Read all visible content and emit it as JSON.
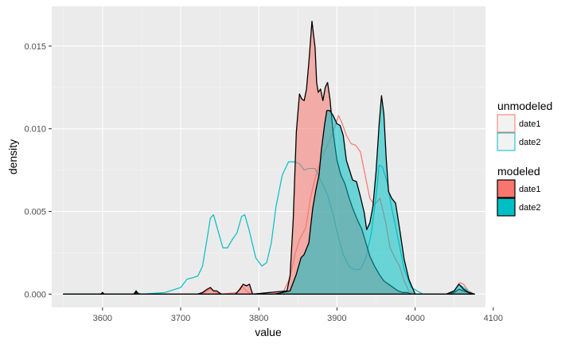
{
  "chart_data": {
    "type": "area",
    "xlabel": "value",
    "ylabel": "density",
    "xlim": [
      3535,
      4090
    ],
    "ylim": [
      -0.0008,
      0.0174
    ],
    "x_ticks": [
      3600,
      3700,
      3800,
      3900,
      4000,
      4100
    ],
    "x_tick_labels": [
      "3600",
      "3700",
      "3800",
      "3900",
      "4000",
      "4100"
    ],
    "y_ticks": [
      0.0,
      0.005,
      0.01,
      0.015
    ],
    "y_tick_labels": [
      "0.000",
      "0.005",
      "0.010",
      "0.015"
    ],
    "grid": true,
    "legend_position": "right",
    "legends": [
      {
        "title": "unmodeled",
        "style": "outline",
        "entries": [
          {
            "label": "date1",
            "color": "#F8766D"
          },
          {
            "label": "date2",
            "color": "#00BFC4"
          }
        ]
      },
      {
        "title": "modeled",
        "style": "filled",
        "entries": [
          {
            "label": "date1",
            "color": "#F8766D"
          },
          {
            "label": "date2",
            "color": "#00BFC4"
          }
        ]
      }
    ],
    "series": [
      {
        "group": "unmodeled",
        "name": "date1",
        "color": "#F8766D",
        "fill": false,
        "outline": "#F8766D",
        "x": [
          3550,
          3720,
          3730,
          3738,
          3745,
          3752,
          3772,
          3778,
          3784,
          3790,
          3830,
          3838,
          3842,
          3847,
          3852,
          3860,
          3866,
          3872,
          3880,
          3888,
          3895,
          3902,
          3906,
          3912,
          3918,
          3924,
          3930,
          3936,
          3942,
          3948,
          3955,
          3962,
          3968,
          3974,
          3980,
          3986,
          3992,
          4000,
          4040,
          4050,
          4057,
          4062,
          4068,
          4076
        ],
        "y": [
          0,
          0,
          0.0001,
          0.0003,
          0.0001,
          0,
          0.0001,
          0.0005,
          0.0002,
          0,
          0,
          0.0008,
          0.0015,
          0.0025,
          0.0033,
          0.004,
          0.0058,
          0.007,
          0.0082,
          0.009,
          0.0098,
          0.0108,
          0.0104,
          0.0096,
          0.0091,
          0.009,
          0.0086,
          0.0072,
          0.0058,
          0.0054,
          0.0058,
          0.0044,
          0.0028,
          0.0022,
          0.0017,
          0.0008,
          0.0002,
          0,
          0,
          0.0002,
          0.0007,
          0.0006,
          0.0002,
          0
        ]
      },
      {
        "group": "unmodeled",
        "name": "date2",
        "color": "#00BFC4",
        "fill": false,
        "outline": "#00BFC4",
        "x": [
          3550,
          3600,
          3640,
          3644,
          3650,
          3680,
          3700,
          3708,
          3716,
          3722,
          3728,
          3734,
          3738,
          3742,
          3748,
          3754,
          3760,
          3766,
          3772,
          3778,
          3782,
          3788,
          3796,
          3804,
          3810,
          3816,
          3822,
          3830,
          3838,
          3845,
          3852,
          3858,
          3864,
          3872,
          3880,
          3888,
          3895,
          3902,
          3908,
          3915,
          3922,
          3930,
          3937,
          3944,
          3950,
          3954,
          3958,
          3964,
          3970,
          3978,
          3986,
          3995,
          4010,
          4040,
          4050,
          4056,
          4062,
          4070,
          4076
        ],
        "y": [
          0,
          0,
          0,
          0.0001,
          0,
          0.0001,
          0.0004,
          0.0009,
          0.001,
          0.0011,
          0.0017,
          0.0034,
          0.0046,
          0.0048,
          0.0038,
          0.0028,
          0.0028,
          0.0033,
          0.0037,
          0.0047,
          0.0048,
          0.0038,
          0.0022,
          0.0017,
          0.0019,
          0.0031,
          0.0053,
          0.0072,
          0.008,
          0.008,
          0.0079,
          0.0075,
          0.0076,
          0.0076,
          0.0068,
          0.006,
          0.0048,
          0.0034,
          0.0024,
          0.0017,
          0.0015,
          0.0015,
          0.0022,
          0.0037,
          0.0059,
          0.0078,
          0.0077,
          0.0068,
          0.0052,
          0.0034,
          0.0015,
          0.0004,
          0,
          0,
          0.0002,
          0.0006,
          0.0004,
          0.0001,
          0
        ]
      },
      {
        "group": "modeled",
        "name": "date1",
        "color": "#F8766D",
        "fill": true,
        "outline": "#000000",
        "x": [
          3550,
          3598,
          3600,
          3602,
          3640,
          3643,
          3646,
          3700,
          3722,
          3728,
          3734,
          3738,
          3742,
          3746,
          3752,
          3770,
          3776,
          3780,
          3784,
          3788,
          3792,
          3836,
          3840,
          3844,
          3848,
          3852,
          3855,
          3858,
          3861,
          3864,
          3868,
          3872,
          3874,
          3876,
          3879,
          3882,
          3885,
          3888,
          3891,
          3895,
          3900,
          3905,
          3910,
          3915,
          3920,
          3926,
          3932,
          3937,
          3942,
          3948,
          3954,
          3960,
          3966,
          3972,
          3978,
          3984,
          3990,
          3996,
          4002,
          4040,
          4050,
          4056,
          4062,
          4068,
          4076
        ],
        "y": [
          0,
          0,
          0.0001,
          0,
          0,
          0.0002,
          0,
          0,
          0,
          0.0001,
          0.0003,
          0.0004,
          0.0002,
          0.0002,
          0,
          0,
          0.0003,
          0.0006,
          0.0005,
          0.0006,
          0,
          0.0002,
          0.0011,
          0.0045,
          0.0098,
          0.0121,
          0.0118,
          0.0117,
          0.0124,
          0.014,
          0.0165,
          0.0149,
          0.0128,
          0.0122,
          0.0124,
          0.0117,
          0.0125,
          0.0128,
          0.0118,
          0.0098,
          0.0081,
          0.0072,
          0.0067,
          0.0059,
          0.0052,
          0.0045,
          0.0039,
          0.0031,
          0.0023,
          0.0017,
          0.0012,
          0.0008,
          0.0006,
          0.0004,
          0.0002,
          0.0001,
          0.0001,
          0,
          0,
          0,
          0.0001,
          0.0003,
          0.0002,
          0.0001,
          0
        ]
      },
      {
        "group": "modeled",
        "name": "date2",
        "color": "#00BFC4",
        "fill": true,
        "outline": "#000000",
        "x": [
          3550,
          3598,
          3600,
          3602,
          3640,
          3643,
          3646,
          3700,
          3820,
          3840,
          3848,
          3854,
          3858,
          3864,
          3869,
          3873,
          3877,
          3880,
          3884,
          3887,
          3891,
          3895,
          3900,
          3904,
          3908,
          3912,
          3916,
          3920,
          3925,
          3930,
          3935,
          3938,
          3942,
          3946,
          3950,
          3954,
          3957,
          3960,
          3963,
          3966,
          3970,
          3975,
          3980,
          3986,
          3992,
          4000,
          4040,
          4050,
          4056,
          4062,
          4068,
          4076
        ],
        "y": [
          0,
          0,
          0.0001,
          0,
          0,
          0.0001,
          0,
          0,
          0,
          0.0002,
          0.0012,
          0.0022,
          0.0024,
          0.0031,
          0.0052,
          0.0063,
          0.0072,
          0.0087,
          0.0102,
          0.0111,
          0.0111,
          0.0108,
          0.0103,
          0.0102,
          0.0096,
          0.0081,
          0.0075,
          0.0069,
          0.0068,
          0.0059,
          0.0049,
          0.0039,
          0.0043,
          0.0053,
          0.0074,
          0.0103,
          0.012,
          0.0109,
          0.0082,
          0.0062,
          0.0058,
          0.0055,
          0.004,
          0.0021,
          0.0009,
          0,
          0,
          0.0002,
          0.0006,
          0.0003,
          0.0001,
          0
        ]
      }
    ]
  }
}
